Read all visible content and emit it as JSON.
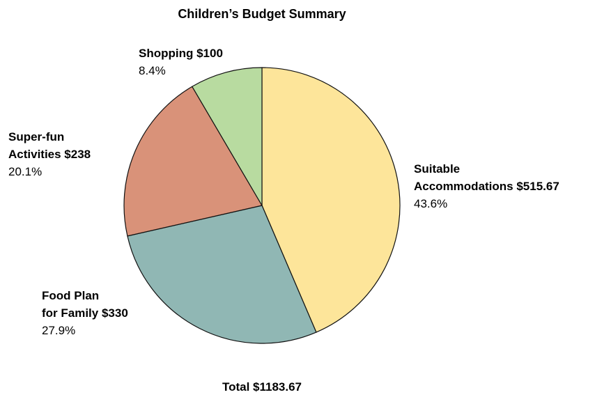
{
  "chart_data": {
    "type": "pie",
    "title": "Children’s Budget Summary",
    "total_label": "Total $1183.67",
    "slices": [
      {
        "name_lines": [
          "Suitable",
          "Accommodations $515.67"
        ],
        "value": 515.67,
        "percent_label": "43.6%",
        "color": "#fde59a"
      },
      {
        "name_lines": [
          "Food Plan",
          "for Family $330"
        ],
        "value": 330,
        "percent_label": "27.9%",
        "color": "#90b7b4"
      },
      {
        "name_lines": [
          "Super-fun",
          "Activities $238"
        ],
        "value": 238,
        "percent_label": "20.1%",
        "color": "#d99279"
      },
      {
        "name_lines": [
          "Shopping $100"
        ],
        "value": 100,
        "percent_label": "8.4%",
        "color": "#b8dba0"
      }
    ],
    "start_angle": "12 o'clock",
    "direction": "clockwise",
    "legend": "none"
  }
}
